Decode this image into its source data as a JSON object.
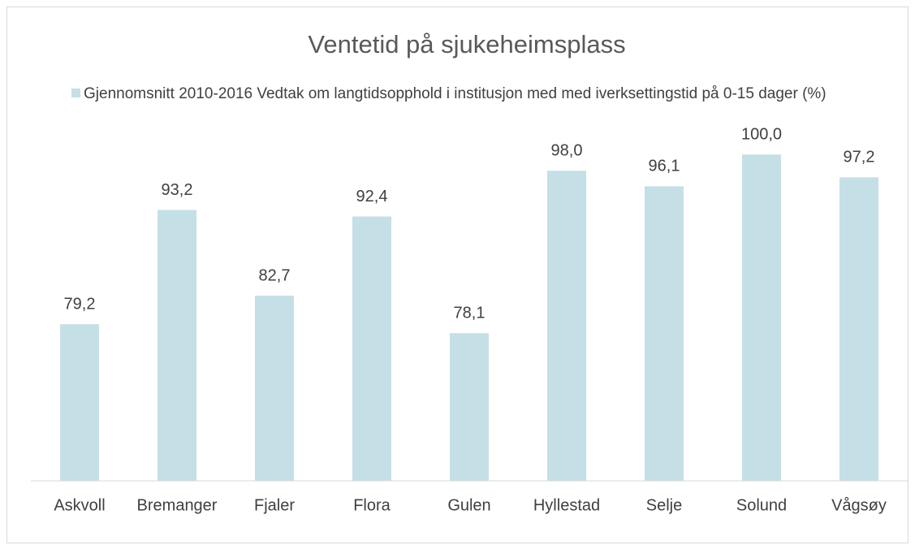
{
  "chart_data": {
    "type": "bar",
    "title": "Ventetid på sjukeheimsplass",
    "series": [
      {
        "name": "Gjennomsnitt 2010-2016  Vedtak om langtidsopphold i institusjon med med iverksettingstid på 0-15 dager (%)",
        "color": "#c5dfe6",
        "values": [
          79.2,
          93.2,
          82.7,
          92.4,
          78.1,
          98.0,
          96.1,
          100.0,
          97.2
        ],
        "value_labels": [
          "79,2",
          "93,2",
          "82,7",
          "92,4",
          "78,1",
          "98,0",
          "96,1",
          "100,0",
          "97,2"
        ]
      }
    ],
    "categories": [
      "Askvoll",
      "Bremanger",
      "Fjaler",
      "Flora",
      "Gulen",
      "Hyllestad",
      "Selje",
      "Solund",
      "Vågsøy"
    ],
    "ylim": [
      60,
      105
    ]
  }
}
